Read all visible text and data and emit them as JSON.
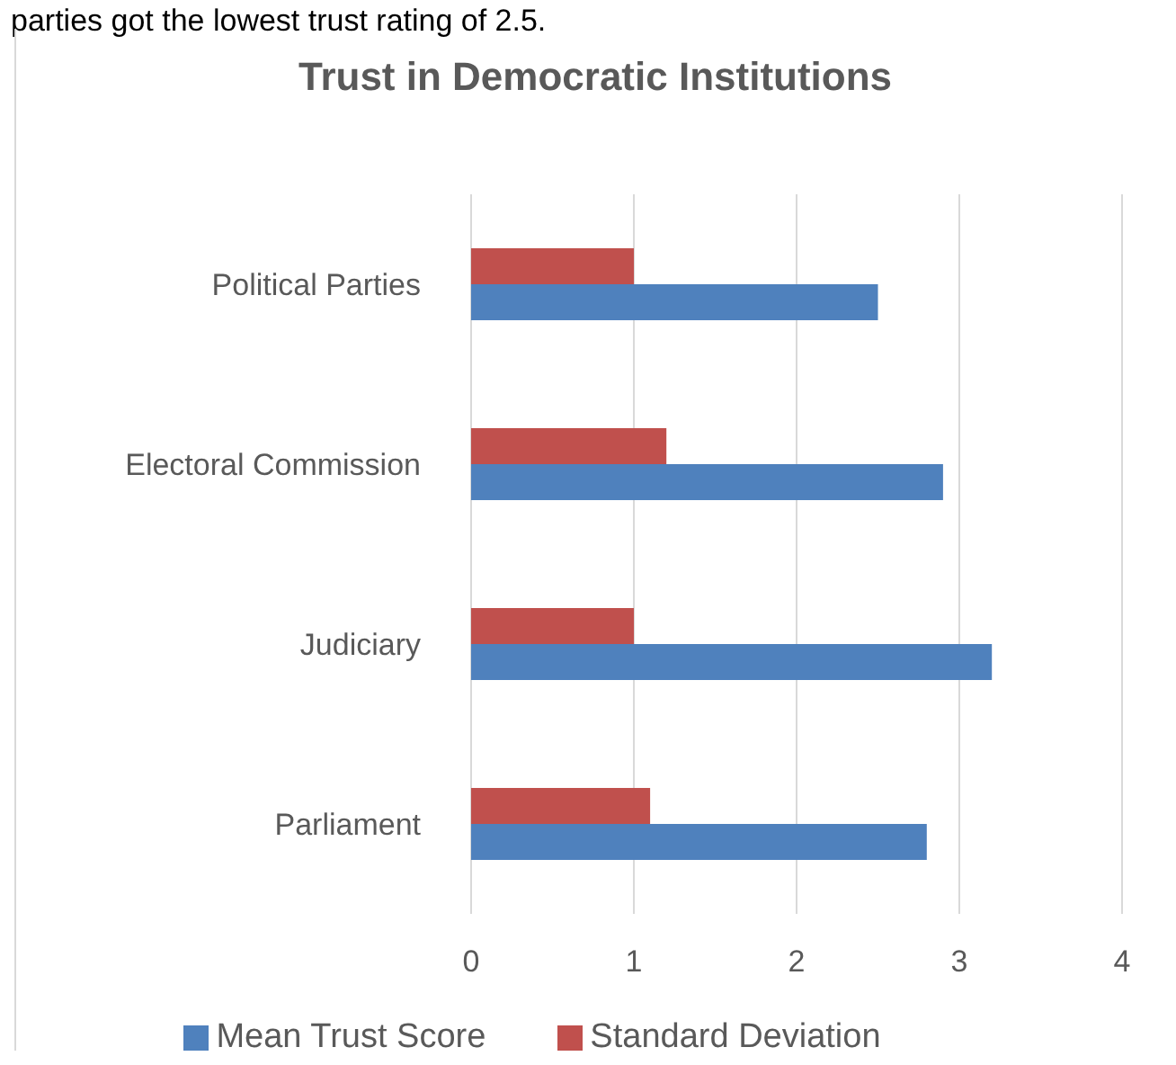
{
  "chart_data": {
    "type": "bar",
    "orientation": "horizontal",
    "title": "Trust in Democratic Institutions",
    "annotations": [
      "parties got the lowest trust rating of 2.5."
    ],
    "categories": [
      "Political Parties",
      "Electoral Commission",
      "Judiciary",
      "Parliament"
    ],
    "series": [
      {
        "name": "Standard Deviation",
        "color": "#c0504d",
        "values": [
          1.0,
          1.2,
          1.0,
          1.1
        ]
      },
      {
        "name": "Mean Trust Score",
        "color": "#4f81bd",
        "values": [
          2.5,
          2.9,
          3.2,
          2.8
        ]
      }
    ],
    "xlim": [
      0,
      4
    ],
    "xticks": [
      0,
      1,
      2,
      3,
      4
    ],
    "grid": "x",
    "legend": "bottom"
  }
}
